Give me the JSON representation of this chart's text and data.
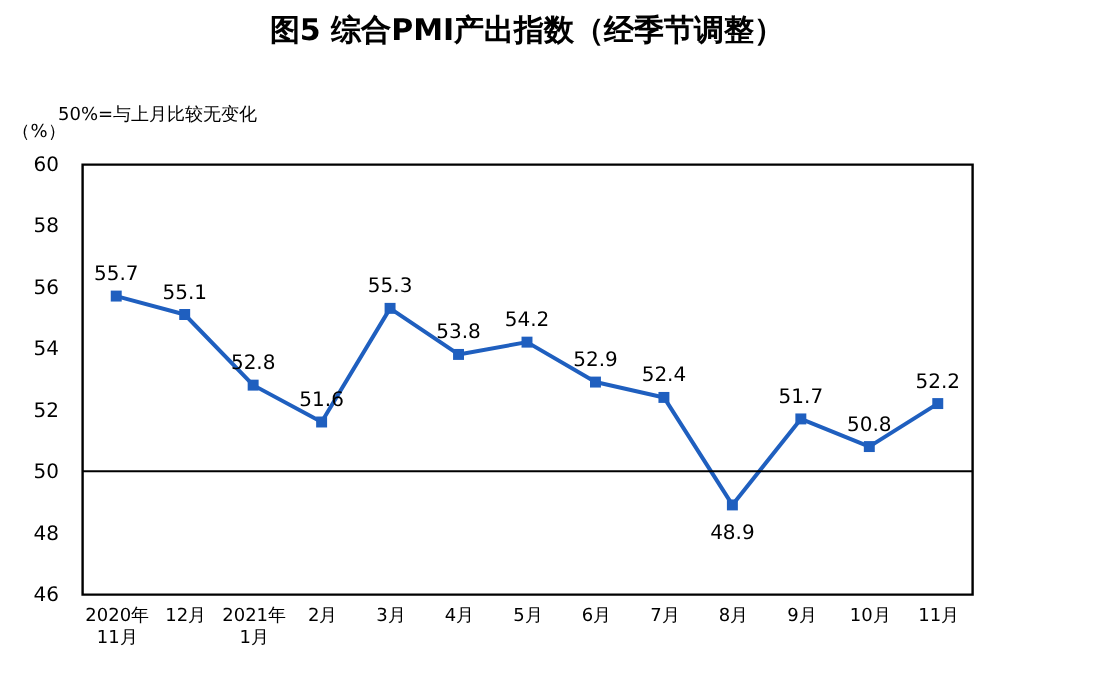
{
  "chart_data": {
    "type": "line",
    "title": "图5  综合PMI产出指数（经季节调整）",
    "ylabel": "（%）",
    "annotations": [
      "50%=与上月比较无变化"
    ],
    "categories": [
      "2020年\n11月",
      "12月",
      "2021年\n1月",
      "2月",
      "3月",
      "4月",
      "5月",
      "6月",
      "7月",
      "8月",
      "9月",
      "10月",
      "11月"
    ],
    "series": [
      {
        "color": "#1f5fbf",
        "values": [
          55.7,
          55.1,
          52.8,
          51.6,
          55.3,
          53.8,
          54.2,
          52.9,
          52.4,
          48.9,
          51.7,
          50.8,
          52.2
        ]
      }
    ],
    "ylim": [
      46,
      60
    ],
    "yticks": [
      46,
      48,
      50,
      52,
      54,
      56,
      58,
      60
    ],
    "ref_lines": [
      {
        "axis": "y",
        "value": 50,
        "color": "#000000"
      }
    ],
    "data_labels": true,
    "marker": "square",
    "line_style": "solid",
    "grid": false,
    "legend": false
  }
}
